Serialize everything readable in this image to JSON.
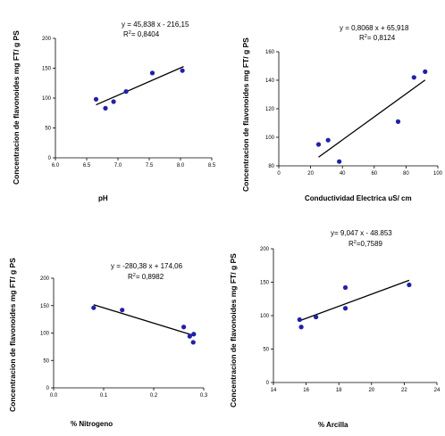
{
  "chart_data": [
    {
      "type": "scatter",
      "ylabel": "Concentracion de flavonoides mg FT/ g PS",
      "xlabel": "pH",
      "xlim": [
        6.0,
        8.5
      ],
      "ylim": [
        0,
        200
      ],
      "xticks": [
        "6.0",
        "6.5",
        "7.0",
        "7.5",
        "8.0",
        "8.5"
      ],
      "yticks": [
        "0",
        "50",
        "100",
        "150",
        "200"
      ],
      "equation": "y = 45,838 x - 216,15",
      "r2_prefix": "R",
      "r2_exp": "2",
      "r2_value": "= 0,8404",
      "points": [
        {
          "x": 6.65,
          "y": 98
        },
        {
          "x": 6.8,
          "y": 83
        },
        {
          "x": 6.93,
          "y": 94
        },
        {
          "x": 7.13,
          "y": 111
        },
        {
          "x": 7.55,
          "y": 142
        },
        {
          "x": 8.03,
          "y": 146
        }
      ],
      "fit": {
        "x": [
          6.65,
          8.05
        ]
      }
    },
    {
      "type": "scatter",
      "ylabel": "Concentracion de flavonoides mg FT/ g PS",
      "xlabel": "Conductividad Electrica uS/ cm",
      "xlim": [
        0,
        100
      ],
      "ylim": [
        80,
        160
      ],
      "xticks": [
        "0",
        "20",
        "40",
        "60",
        "80",
        "100"
      ],
      "yticks": [
        "80",
        "100",
        "120",
        "140",
        "160"
      ],
      "equation": "y = 0,8068 x + 65,918",
      "r2_prefix": "R",
      "r2_exp": "2",
      "r2_value": "= 0,8124",
      "points": [
        {
          "x": 25,
          "y": 95
        },
        {
          "x": 31,
          "y": 98
        },
        {
          "x": 38,
          "y": 83
        },
        {
          "x": 75,
          "y": 111
        },
        {
          "x": 85,
          "y": 142
        },
        {
          "x": 92,
          "y": 146
        }
      ],
      "fit": {
        "x": [
          25,
          92
        ]
      }
    },
    {
      "type": "scatter",
      "ylabel": "Concentracion de flavonoides mg FT/ g PS",
      "xlabel": "% Nitrogeno",
      "xlim": [
        0,
        0.3
      ],
      "ylim": [
        0,
        200
      ],
      "xticks": [
        "0.0",
        "0.1",
        "0.2",
        "0.3"
      ],
      "yticks": [
        "0",
        "50",
        "100",
        "150",
        "200"
      ],
      "equation": "y = -280,38 x + 174,06",
      "r2_prefix": "R",
      "r2_exp": "2",
      "r2_value": "= 0,8982",
      "points": [
        {
          "x": 0.08,
          "y": 146
        },
        {
          "x": 0.137,
          "y": 142
        },
        {
          "x": 0.26,
          "y": 111
        },
        {
          "x": 0.272,
          "y": 94
        },
        {
          "x": 0.28,
          "y": 98
        },
        {
          "x": 0.279,
          "y": 83
        }
      ],
      "fit": {
        "x": [
          0.08,
          0.28
        ]
      }
    },
    {
      "type": "scatter",
      "ylabel": "Concentracion de flavonoides mg FT/ g PS",
      "xlabel": "% Arcilla",
      "xlim": [
        14,
        24
      ],
      "ylim": [
        0,
        200
      ],
      "xticks": [
        "14",
        "16",
        "18",
        "20",
        "22",
        "24"
      ],
      "yticks": [
        "0",
        "50",
        "100",
        "150",
        "200"
      ],
      "equation": "y= 9,047 x - 48.853",
      "r2_prefix": "R",
      "r2_exp": "2",
      "r2_value": "=0,7589",
      "points": [
        {
          "x": 15.6,
          "y": 94
        },
        {
          "x": 15.7,
          "y": 83
        },
        {
          "x": 16.6,
          "y": 98
        },
        {
          "x": 18.4,
          "y": 142
        },
        {
          "x": 18.4,
          "y": 111
        },
        {
          "x": 22.3,
          "y": 146
        }
      ],
      "fit": {
        "x": [
          15.6,
          22.3
        ]
      }
    }
  ]
}
